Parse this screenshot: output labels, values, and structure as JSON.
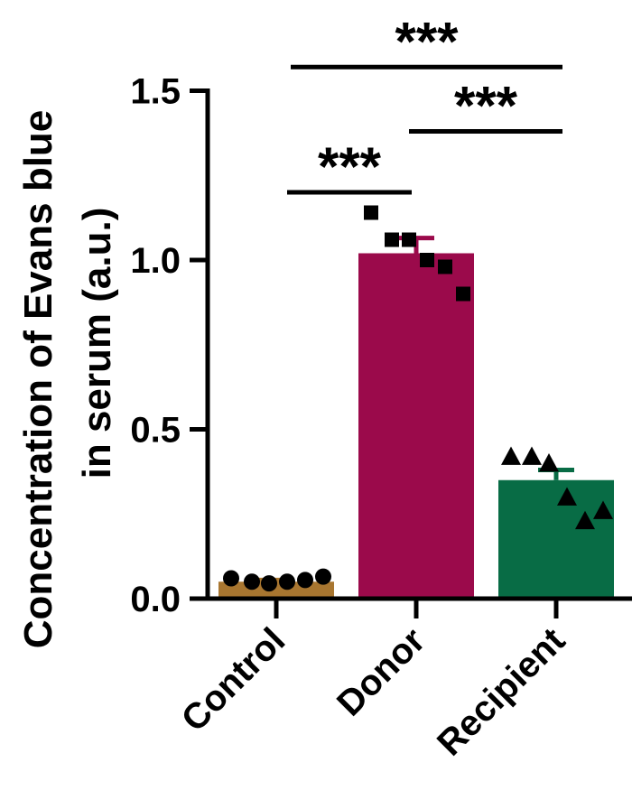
{
  "chart_data": {
    "type": "bar",
    "ylabel": [
      "Concentration of Evans blue",
      "in serum (a.u.)"
    ],
    "ylim": [
      0,
      1.5
    ],
    "yticks": [
      0.0,
      0.5,
      1.0,
      1.5
    ],
    "ytick_labels": [
      "0.0",
      "0.5",
      "1.0",
      "1.5"
    ],
    "categories": [
      "Control",
      "Donor",
      "Recipient"
    ],
    "bars": [
      {
        "label": "Control",
        "value": 0.05,
        "sem": 0.005,
        "color": "#a87630",
        "marker": "circle",
        "points": [
          0.06,
          0.05,
          0.045,
          0.05,
          0.055,
          0.065
        ]
      },
      {
        "label": "Donor",
        "value": 1.02,
        "sem": 0.045,
        "color": "#9b0a4b",
        "marker": "square",
        "points": [
          1.14,
          1.06,
          1.06,
          1.0,
          0.98,
          0.9
        ]
      },
      {
        "label": "Recipient",
        "value": 0.35,
        "sem": 0.03,
        "color": "#086c45",
        "marker": "triangle",
        "points": [
          0.42,
          0.42,
          0.4,
          0.3,
          0.23,
          0.26
        ]
      }
    ],
    "significance": [
      {
        "from": 0,
        "to": 1,
        "label": "***",
        "y": 1.2
      },
      {
        "from": 1,
        "to": 2,
        "label": "***",
        "y": 1.38
      },
      {
        "from": 0,
        "to": 2,
        "label": "***",
        "y": 1.57
      }
    ],
    "grid": false,
    "legend": "none"
  }
}
